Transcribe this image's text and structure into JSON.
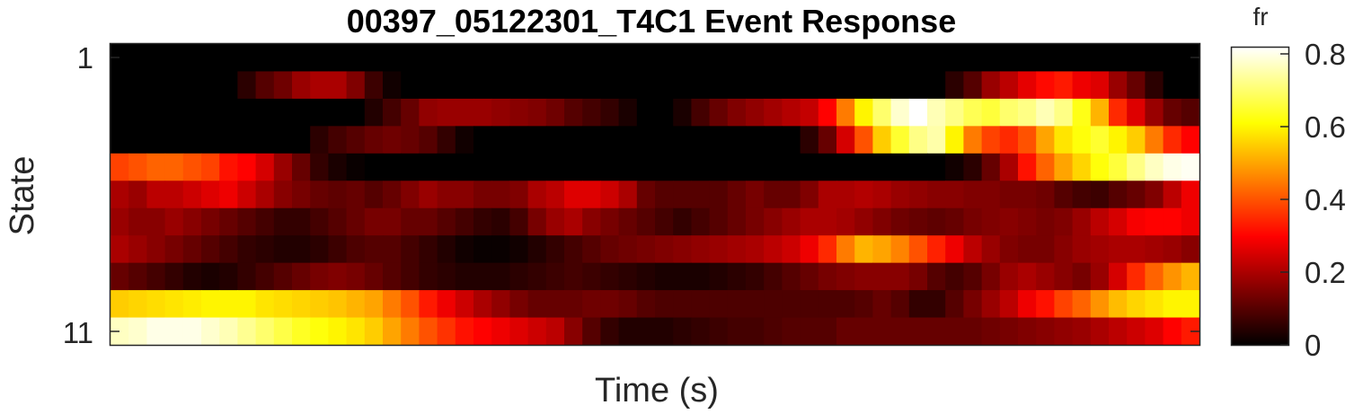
{
  "chart_data": {
    "type": "heatmap",
    "title": "00397_05122301_T4C1 Event Response",
    "xlabel": "Time (s)",
    "ylabel": "State",
    "y_ticks": [
      "1",
      "11"
    ],
    "colormap": "hot",
    "colorbar": {
      "label": "fr",
      "range": [
        0,
        0.82
      ],
      "ticks": [
        "0",
        "0.2",
        "0.4",
        "0.6",
        "0.8"
      ]
    },
    "n_rows": 11,
    "n_cols": 60,
    "values": [
      [
        0,
        0,
        0,
        0,
        0,
        0,
        0,
        0,
        0,
        0,
        0,
        0,
        0,
        0,
        0,
        0,
        0,
        0,
        0,
        0,
        0,
        0,
        0,
        0,
        0,
        0,
        0,
        0,
        0,
        0,
        0,
        0,
        0,
        0,
        0,
        0,
        0,
        0,
        0,
        0,
        0,
        0,
        0,
        0,
        0,
        0,
        0,
        0,
        0,
        0,
        0,
        0,
        0,
        0,
        0,
        0,
        0,
        0,
        0,
        0
      ],
      [
        0,
        0,
        0,
        0,
        0,
        0,
        0,
        0.05,
        0.1,
        0.13,
        0.18,
        0.2,
        0.2,
        0.15,
        0.07,
        0.02,
        0,
        0,
        0,
        0,
        0,
        0,
        0,
        0,
        0,
        0,
        0,
        0,
        0,
        0,
        0,
        0,
        0,
        0,
        0,
        0,
        0,
        0,
        0,
        0,
        0,
        0,
        0,
        0,
        0,
        0,
        0.05,
        0.1,
        0.18,
        0.22,
        0.27,
        0.31,
        0.33,
        0.28,
        0.26,
        0.18,
        0.12,
        0.05,
        0,
        0
      ],
      [
        0,
        0,
        0,
        0,
        0,
        0,
        0,
        0,
        0,
        0,
        0,
        0,
        0,
        0,
        0.04,
        0.08,
        0.12,
        0.17,
        0.18,
        0.18,
        0.18,
        0.17,
        0.16,
        0.15,
        0.13,
        0.1,
        0.08,
        0.06,
        0.03,
        0,
        0,
        0.03,
        0.08,
        0.12,
        0.15,
        0.17,
        0.19,
        0.21,
        0.23,
        0.3,
        0.45,
        0.6,
        0.7,
        0.78,
        0.82,
        0.76,
        0.72,
        0.68,
        0.66,
        0.7,
        0.72,
        0.76,
        0.72,
        0.63,
        0.52,
        0.35,
        0.26,
        0.18,
        0.12,
        0.1
      ],
      [
        0,
        0,
        0,
        0,
        0,
        0,
        0,
        0,
        0,
        0,
        0,
        0.05,
        0.08,
        0.1,
        0.12,
        0.13,
        0.12,
        0.1,
        0.06,
        0.02,
        0,
        0,
        0,
        0,
        0,
        0,
        0,
        0,
        0,
        0,
        0,
        0,
        0,
        0,
        0,
        0,
        0,
        0,
        0.05,
        0.12,
        0.25,
        0.4,
        0.55,
        0.65,
        0.72,
        0.75,
        0.6,
        0.45,
        0.38,
        0.35,
        0.4,
        0.5,
        0.58,
        0.62,
        0.65,
        0.6,
        0.55,
        0.45,
        0.35,
        0.3
      ],
      [
        0.38,
        0.4,
        0.42,
        0.42,
        0.4,
        0.38,
        0.32,
        0.3,
        0.25,
        0.18,
        0.12,
        0.06,
        0.03,
        0.01,
        0,
        0,
        0,
        0,
        0,
        0,
        0,
        0,
        0,
        0,
        0,
        0,
        0,
        0,
        0,
        0,
        0,
        0,
        0,
        0,
        0,
        0,
        0,
        0,
        0,
        0,
        0,
        0,
        0,
        0,
        0,
        0,
        0.02,
        0.05,
        0.12,
        0.2,
        0.32,
        0.42,
        0.5,
        0.56,
        0.62,
        0.66,
        0.72,
        0.77,
        0.8,
        0.81
      ],
      [
        0.2,
        0.18,
        0.22,
        0.22,
        0.24,
        0.26,
        0.28,
        0.24,
        0.2,
        0.16,
        0.14,
        0.12,
        0.11,
        0.12,
        0.1,
        0.12,
        0.15,
        0.18,
        0.16,
        0.16,
        0.14,
        0.14,
        0.15,
        0.2,
        0.22,
        0.26,
        0.26,
        0.24,
        0.2,
        0.12,
        0.1,
        0.1,
        0.1,
        0.1,
        0.12,
        0.14,
        0.12,
        0.12,
        0.15,
        0.2,
        0.2,
        0.21,
        0.2,
        0.18,
        0.17,
        0.16,
        0.16,
        0.15,
        0.15,
        0.14,
        0.14,
        0.13,
        0.1,
        0.08,
        0.07,
        0.1,
        0.12,
        0.15,
        0.22,
        0.28
      ],
      [
        0.18,
        0.16,
        0.16,
        0.18,
        0.16,
        0.14,
        0.12,
        0.1,
        0.08,
        0.06,
        0.06,
        0.08,
        0.1,
        0.12,
        0.14,
        0.14,
        0.12,
        0.12,
        0.1,
        0.08,
        0.06,
        0.05,
        0.08,
        0.14,
        0.18,
        0.2,
        0.16,
        0.14,
        0.12,
        0.1,
        0.08,
        0.06,
        0.08,
        0.1,
        0.12,
        0.14,
        0.16,
        0.18,
        0.2,
        0.2,
        0.19,
        0.17,
        0.15,
        0.13,
        0.12,
        0.11,
        0.12,
        0.14,
        0.15,
        0.16,
        0.15,
        0.14,
        0.15,
        0.18,
        0.22,
        0.25,
        0.29,
        0.3,
        0.3,
        0.28
      ],
      [
        0.2,
        0.18,
        0.16,
        0.14,
        0.12,
        0.1,
        0.08,
        0.06,
        0.05,
        0.04,
        0.04,
        0.05,
        0.07,
        0.09,
        0.1,
        0.1,
        0.08,
        0.06,
        0.04,
        0.02,
        0.01,
        0.01,
        0.02,
        0.04,
        0.06,
        0.08,
        0.1,
        0.12,
        0.13,
        0.14,
        0.15,
        0.16,
        0.17,
        0.18,
        0.19,
        0.2,
        0.22,
        0.24,
        0.28,
        0.35,
        0.45,
        0.52,
        0.5,
        0.46,
        0.4,
        0.34,
        0.28,
        0.22,
        0.18,
        0.15,
        0.14,
        0.14,
        0.16,
        0.18,
        0.19,
        0.2,
        0.2,
        0.19,
        0.18,
        0.16
      ],
      [
        0.12,
        0.1,
        0.08,
        0.06,
        0.04,
        0.03,
        0.04,
        0.06,
        0.08,
        0.1,
        0.12,
        0.14,
        0.15,
        0.14,
        0.12,
        0.1,
        0.08,
        0.06,
        0.05,
        0.04,
        0.04,
        0.04,
        0.05,
        0.06,
        0.07,
        0.08,
        0.07,
        0.06,
        0.05,
        0.04,
        0.03,
        0.03,
        0.03,
        0.04,
        0.05,
        0.06,
        0.08,
        0.1,
        0.12,
        0.14,
        0.15,
        0.16,
        0.16,
        0.16,
        0.14,
        0.1,
        0.08,
        0.1,
        0.14,
        0.18,
        0.2,
        0.18,
        0.16,
        0.14,
        0.18,
        0.25,
        0.35,
        0.42,
        0.48,
        0.52
      ],
      [
        0.55,
        0.56,
        0.57,
        0.58,
        0.59,
        0.6,
        0.6,
        0.6,
        0.58,
        0.57,
        0.56,
        0.55,
        0.54,
        0.52,
        0.5,
        0.45,
        0.4,
        0.33,
        0.28,
        0.24,
        0.2,
        0.17,
        0.14,
        0.12,
        0.12,
        0.12,
        0.13,
        0.13,
        0.12,
        0.1,
        0.09,
        0.09,
        0.09,
        0.09,
        0.09,
        0.09,
        0.09,
        0.09,
        0.09,
        0.09,
        0.09,
        0.1,
        0.12,
        0.1,
        0.06,
        0.06,
        0.1,
        0.14,
        0.18,
        0.22,
        0.28,
        0.32,
        0.38,
        0.42,
        0.48,
        0.53,
        0.56,
        0.58,
        0.6,
        0.6
      ],
      [
        0.77,
        0.78,
        0.8,
        0.8,
        0.8,
        0.78,
        0.76,
        0.73,
        0.7,
        0.67,
        0.64,
        0.62,
        0.6,
        0.58,
        0.55,
        0.5,
        0.45,
        0.4,
        0.36,
        0.32,
        0.3,
        0.28,
        0.26,
        0.24,
        0.22,
        0.16,
        0.1,
        0.06,
        0.04,
        0.04,
        0.04,
        0.05,
        0.06,
        0.07,
        0.08,
        0.08,
        0.09,
        0.1,
        0.1,
        0.1,
        0.12,
        0.12,
        0.12,
        0.12,
        0.12,
        0.12,
        0.12,
        0.12,
        0.13,
        0.14,
        0.15,
        0.16,
        0.17,
        0.18,
        0.2,
        0.22,
        0.24,
        0.26,
        0.3,
        0.33
      ]
    ]
  }
}
